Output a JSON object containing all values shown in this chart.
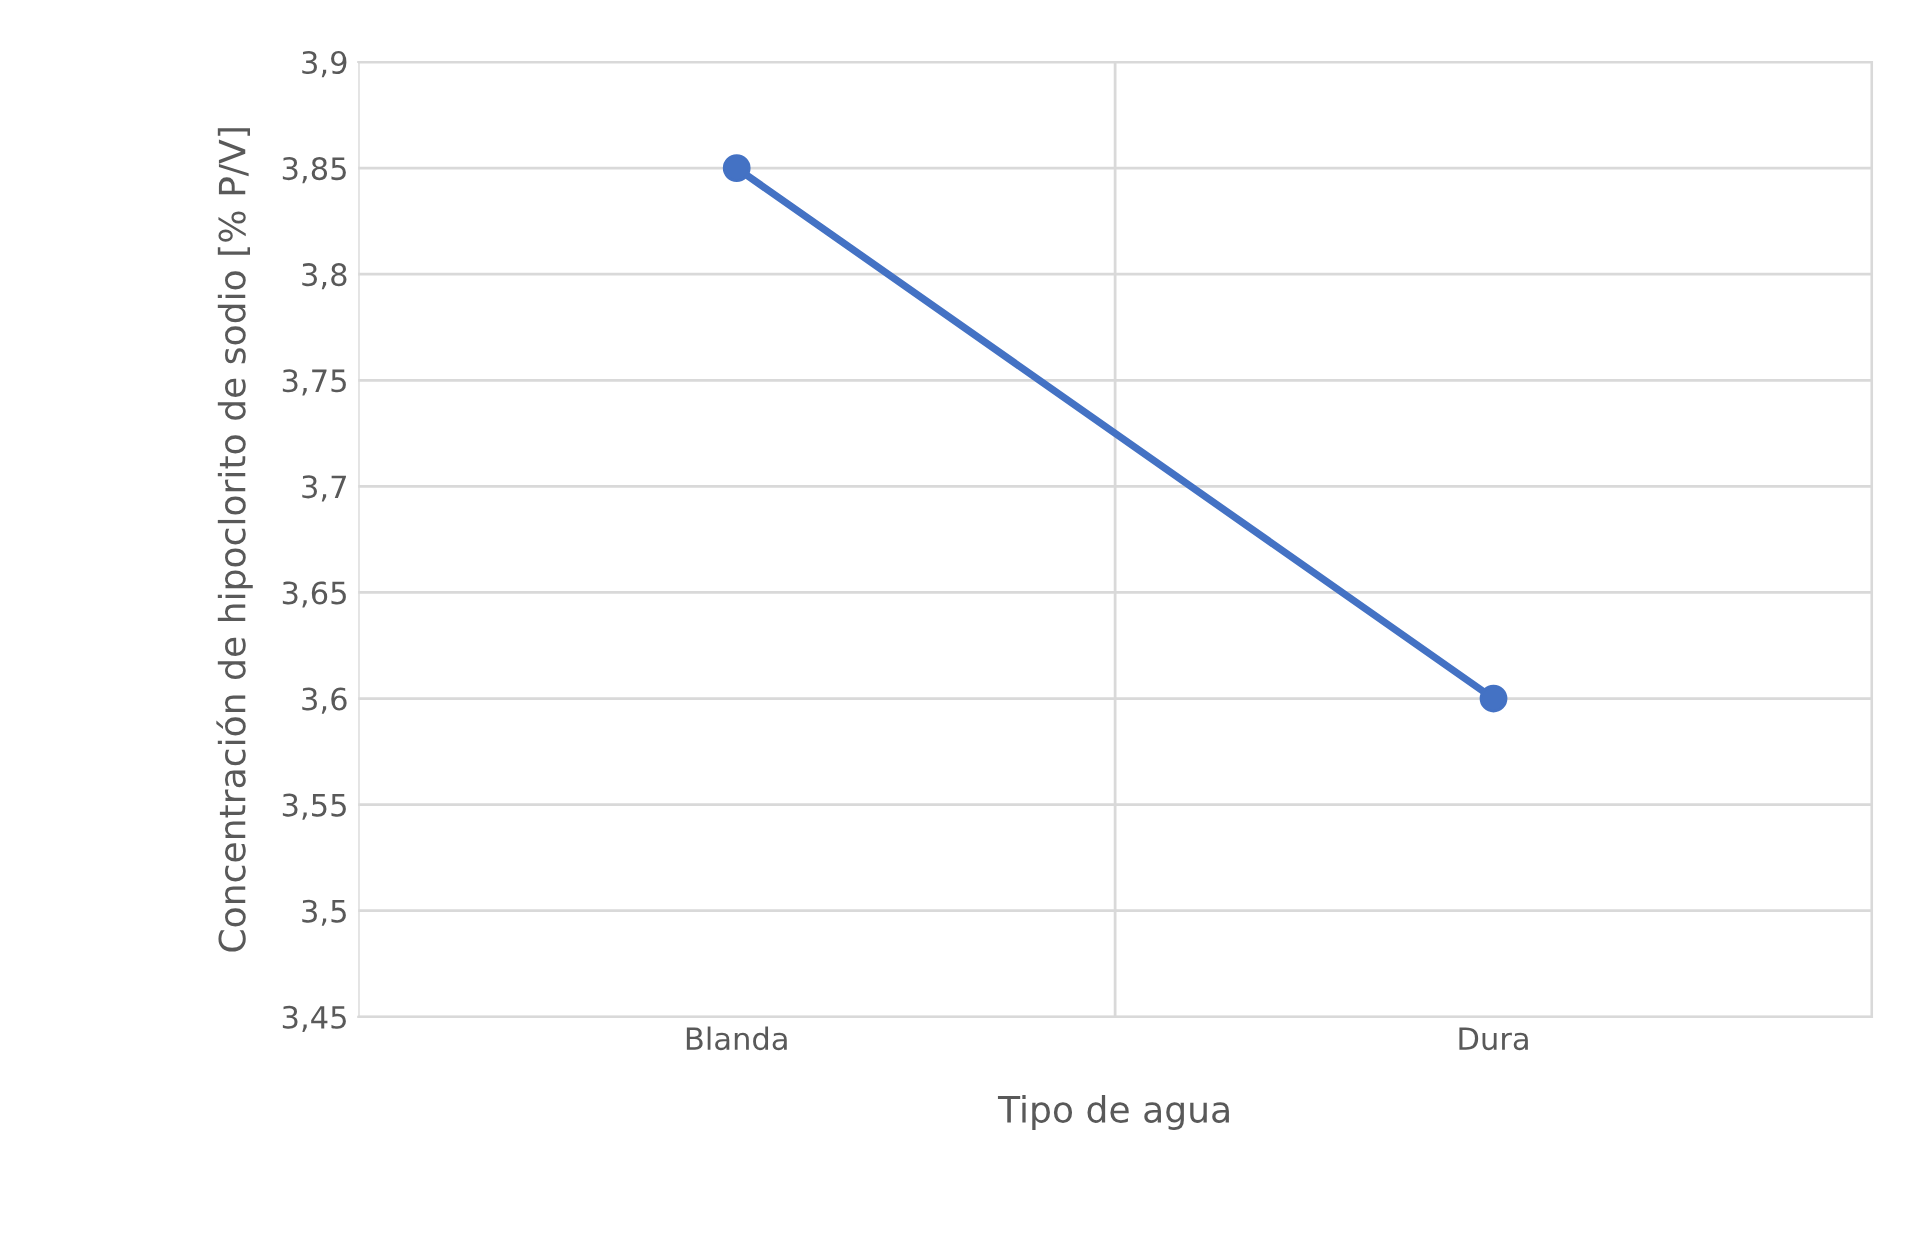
{
  "chart_data": {
    "type": "line",
    "xlabel": "Tipo de agua",
    "ylabel": "Concentración de hipoclorito de sodio [% P/V]",
    "categories": [
      "Blanda",
      "Dura"
    ],
    "series": [
      {
        "color": "#4472c4",
        "values": [
          3.85,
          3.6
        ]
      }
    ],
    "ylim": [
      3.45,
      3.9
    ],
    "yticks": [
      {
        "value": 3.45,
        "label": "3,45"
      },
      {
        "value": 3.5,
        "label": "3,5"
      },
      {
        "value": 3.55,
        "label": "3,55"
      },
      {
        "value": 3.6,
        "label": "3,6"
      },
      {
        "value": 3.65,
        "label": "3,65"
      },
      {
        "value": 3.7,
        "label": "3,7"
      },
      {
        "value": 3.75,
        "label": "3,75"
      },
      {
        "value": 3.8,
        "label": "3,8"
      },
      {
        "value": 3.85,
        "label": "3,85"
      },
      {
        "value": 3.9,
        "label": "3,9"
      }
    ],
    "grid": true,
    "marker": "circle",
    "line_style": "solid"
  }
}
